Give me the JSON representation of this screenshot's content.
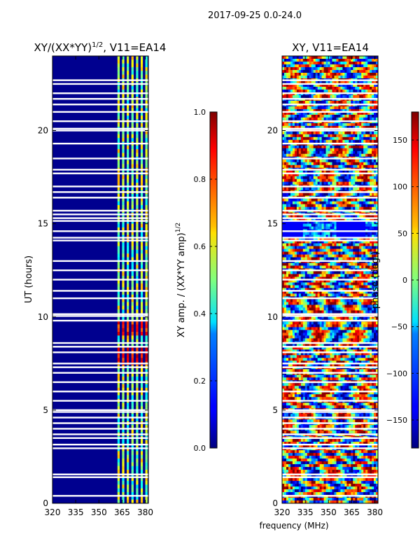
{
  "suptitle": "2017-09-25 0.0-24.0",
  "chart_data": [
    {
      "type": "heatmap",
      "title_main": "XY/(XX*YY)",
      "title_exp": "1/2",
      "title_suffix": ", V11=EA14",
      "xlabel": "",
      "ylabel": "UT (hours)",
      "xlim": [
        320,
        382
      ],
      "ylim": [
        0,
        24
      ],
      "xticks": [
        "320",
        "335",
        "350",
        "365",
        "380"
      ],
      "xtick_values": [
        320,
        335,
        350,
        365,
        380
      ],
      "yticks": [
        "0",
        "5",
        "10",
        "15",
        "20"
      ],
      "ytick_values": [
        0,
        5,
        10,
        15,
        20
      ],
      "colorbar": {
        "label_main": "XY amp. / (XX*YY amp)",
        "label_exp": "1/2",
        "range": [
          0.0,
          1.0
        ],
        "ticks": [
          "0.0",
          "0.2",
          "0.4",
          "0.6",
          "0.8",
          "1.0"
        ],
        "tick_values": [
          0.0,
          0.2,
          0.4,
          0.6,
          0.8,
          1.0
        ],
        "colormap": "jet"
      }
    },
    {
      "type": "heatmap",
      "title": "XY, V11=EA14",
      "xlabel": "frequency (MHz)",
      "ylabel": "",
      "xlim": [
        320,
        382
      ],
      "ylim": [
        0,
        24
      ],
      "xticks": [
        "320",
        "335",
        "350",
        "365",
        "380"
      ],
      "xtick_values": [
        320,
        335,
        350,
        365,
        380
      ],
      "yticks": [
        "0",
        "5",
        "10",
        "15",
        "20"
      ],
      "ytick_values": [
        0,
        5,
        10,
        15,
        20
      ],
      "colorbar": {
        "label": "phase (deg.)",
        "range": [
          -180,
          180
        ],
        "ticks": [
          "−150",
          "−100",
          "−50",
          "0",
          "50",
          "100",
          "150"
        ],
        "tick_values": [
          -150,
          -100,
          -50,
          0,
          50,
          100,
          150
        ],
        "colormap": "jet"
      }
    }
  ],
  "flag_gaps_ut": [
    0.4,
    1.4,
    1.55,
    2.95,
    3.15,
    3.5,
    3.7,
    4.0,
    4.3,
    4.6,
    4.9,
    5.0,
    5.5,
    6.0,
    6.5,
    7.0,
    7.3,
    7.5,
    8.1,
    8.4,
    8.6,
    9.8,
    10.05,
    10.15,
    11.0,
    11.4,
    12.0,
    12.5,
    13.0,
    14.1,
    14.25,
    14.6,
    15.15,
    15.3,
    15.5,
    15.7,
    16.4,
    16.7,
    17.0,
    17.7,
    17.9,
    18.5,
    19.3,
    20.0,
    20.1,
    20.5,
    21.0,
    21.4,
    21.7,
    22.0,
    22.5,
    22.7
  ],
  "colors": {
    "jet_low": "#00007f",
    "jet_mid": "#7fff7f",
    "jet_high": "#7f0000",
    "flag": "#ffffff"
  }
}
